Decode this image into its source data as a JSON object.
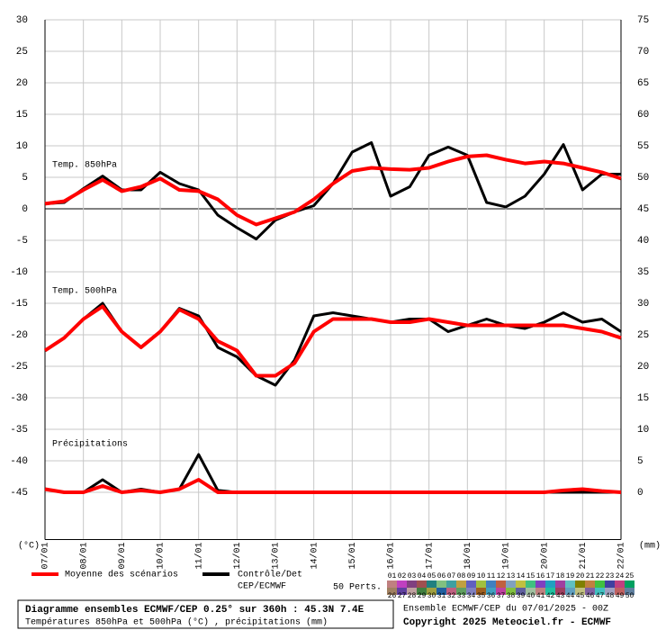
{
  "chart_data": {
    "type": "line",
    "x": [
      0,
      0.5,
      1,
      1.5,
      2,
      2.5,
      3,
      3.5,
      4,
      4.5,
      5,
      5.5,
      6,
      6.5,
      7,
      7.5,
      8,
      8.5,
      9,
      9.5,
      10,
      10.5,
      11,
      11.5,
      12,
      12.5,
      13,
      13.5,
      14,
      14.5,
      15
    ],
    "xlim": [
      0,
      15
    ],
    "xticks": [
      {
        "value": 0,
        "label": "07/01"
      },
      {
        "value": 1,
        "label": "08/01"
      },
      {
        "value": 2,
        "label": "09/01"
      },
      {
        "value": 3,
        "label": "10/01"
      },
      {
        "value": 4,
        "label": "11/01"
      },
      {
        "value": 5,
        "label": "12/01"
      },
      {
        "value": 6,
        "label": "13/01"
      },
      {
        "value": 7,
        "label": "14/01"
      },
      {
        "value": 8,
        "label": "15/01"
      },
      {
        "value": 9,
        "label": "16/01"
      },
      {
        "value": 10,
        "label": "17/01"
      },
      {
        "value": 11,
        "label": "18/01"
      },
      {
        "value": 12,
        "label": "19/01"
      },
      {
        "value": 13,
        "label": "20/01"
      },
      {
        "value": 14,
        "label": "21/01"
      },
      {
        "value": 15,
        "label": "22/01"
      }
    ],
    "ylim": [
      -52.5,
      30
    ],
    "yticks": [
      30,
      25,
      20,
      15,
      10,
      5,
      0,
      -5,
      -10,
      -15,
      -20,
      -25,
      -30,
      -35,
      -40,
      -45
    ],
    "y2lim": [
      -7.5,
      75
    ],
    "y2ticks": [
      75,
      70,
      65,
      60,
      55,
      50,
      45,
      40,
      35,
      30,
      25,
      20,
      15,
      10,
      5,
      0
    ],
    "y_unit": "(°C)",
    "y2_unit": "(mm)",
    "grid": true,
    "panels": [
      {
        "label": "Temp. 850hPa",
        "axis": "y",
        "mean": [
          0.8,
          1.2,
          3.0,
          4.6,
          2.8,
          3.5,
          4.8,
          3.0,
          2.8,
          1.5,
          -1.0,
          -2.5,
          -1.5,
          -0.5,
          1.5,
          4.0,
          6.0,
          6.5,
          6.3,
          6.2,
          6.5,
          7.5,
          8.3,
          8.5,
          7.8,
          7.2,
          7.5,
          7.2,
          6.5,
          5.8,
          4.8
        ],
        "control": [
          0.8,
          1.0,
          3.2,
          5.2,
          3.0,
          3.0,
          5.8,
          4.0,
          3.0,
          -1.0,
          -3.0,
          -4.8,
          -1.8,
          -0.5,
          0.5,
          4.0,
          9.0,
          10.5,
          2.0,
          3.5,
          8.5,
          9.8,
          8.5,
          1.0,
          0.3,
          2.0,
          5.5,
          10.2,
          3.0,
          5.5,
          5.5
        ]
      },
      {
        "label": "Temp. 500hPa",
        "axis": "y",
        "mean": [
          -22.5,
          -20.5,
          -17.5,
          -15.5,
          -19.5,
          -22,
          -19.5,
          -16,
          -17.5,
          -21,
          -22.5,
          -26.5,
          -26.5,
          -24.5,
          -19.5,
          -17.5,
          -17.5,
          -17.5,
          -18,
          -18,
          -17.5,
          -18,
          -18.5,
          -18.5,
          -18.5,
          -18.5,
          -18.5,
          -18.5,
          -19,
          -19.5,
          -20.5
        ],
        "control": [
          -22.5,
          -20.5,
          -17.5,
          -15,
          -19.5,
          -22,
          -19.5,
          -15.8,
          -17,
          -22,
          -23.5,
          -26.5,
          -28,
          -24,
          -17,
          -16.5,
          -17,
          -17.5,
          -18,
          -17.5,
          -17.5,
          -19.5,
          -18.5,
          -17.5,
          -18.5,
          -19,
          -18,
          -16.5,
          -18,
          -17.5,
          -19.5
        ]
      },
      {
        "label": "Précipitations",
        "axis": "y2",
        "mean": [
          0.5,
          0,
          0,
          1.0,
          0,
          0.3,
          0,
          0.5,
          2.0,
          0,
          0,
          0,
          0,
          0,
          0,
          0,
          0,
          0,
          0,
          0,
          0,
          0,
          0,
          0,
          0,
          0,
          0,
          0.3,
          0.5,
          0.2,
          0
        ],
        "control": [
          0.5,
          0,
          0,
          2.0,
          0,
          0.5,
          0,
          0.5,
          6.0,
          0.3,
          0,
          0,
          0,
          0,
          0,
          0,
          0,
          0,
          0,
          0,
          0,
          0,
          0,
          0,
          0,
          0,
          0,
          0,
          0,
          0,
          0
        ]
      }
    ],
    "mean_legend": {
      "label": "Moyenne des scénarios",
      "color": "#ff0000"
    },
    "control_legend": {
      "label": "Contrôle/Det",
      "label2": "CEP/ECMWF",
      "color": "#000000"
    },
    "members_label": "50 Perts.",
    "members": [
      {
        "name": "01",
        "color": "#c08080"
      },
      {
        "name": "02",
        "color": "#c040c0"
      },
      {
        "name": "03",
        "color": "#804080"
      },
      {
        "name": "04",
        "color": "#a05050"
      },
      {
        "name": "05",
        "color": "#208080"
      },
      {
        "name": "06",
        "color": "#80c080"
      },
      {
        "name": "07",
        "color": "#40a0a0"
      },
      {
        "name": "08",
        "color": "#c0a040"
      },
      {
        "name": "09",
        "color": "#6060c0"
      },
      {
        "name": "10",
        "color": "#a0c040"
      },
      {
        "name": "11",
        "color": "#4080c0"
      },
      {
        "name": "12",
        "color": "#c06040"
      },
      {
        "name": "13",
        "color": "#80a0c0"
      },
      {
        "name": "14",
        "color": "#c0c040"
      },
      {
        "name": "15",
        "color": "#40c080"
      },
      {
        "name": "16",
        "color": "#8040c0"
      },
      {
        "name": "17",
        "color": "#20a0c0"
      },
      {
        "name": "18",
        "color": "#a040a0"
      },
      {
        "name": "19",
        "color": "#60c0c0"
      },
      {
        "name": "20",
        "color": "#808000"
      },
      {
        "name": "21",
        "color": "#c08040"
      },
      {
        "name": "22",
        "color": "#40c040"
      },
      {
        "name": "23",
        "color": "#4040a0"
      },
      {
        "name": "24",
        "color": "#c04080"
      },
      {
        "name": "25",
        "color": "#00a060"
      },
      {
        "name": "26",
        "color": "#a08060"
      },
      {
        "name": "27",
        "color": "#6040a0"
      },
      {
        "name": "28",
        "color": "#c0a0a0"
      },
      {
        "name": "29",
        "color": "#408040"
      },
      {
        "name": "30",
        "color": "#a0a040"
      },
      {
        "name": "31",
        "color": "#2060a0"
      },
      {
        "name": "32",
        "color": "#c06080"
      },
      {
        "name": "33",
        "color": "#60a060"
      },
      {
        "name": "34",
        "color": "#8080c0"
      },
      {
        "name": "35",
        "color": "#a06020"
      },
      {
        "name": "36",
        "color": "#40a0c0"
      },
      {
        "name": "37",
        "color": "#c040a0"
      },
      {
        "name": "38",
        "color": "#80c040"
      },
      {
        "name": "39",
        "color": "#6060a0"
      },
      {
        "name": "40",
        "color": "#a0c0a0"
      },
      {
        "name": "41",
        "color": "#c08080"
      },
      {
        "name": "42",
        "color": "#20c0a0"
      },
      {
        "name": "43",
        "color": "#a04060"
      },
      {
        "name": "44",
        "color": "#60a0c0"
      },
      {
        "name": "45",
        "color": "#c0c080"
      },
      {
        "name": "46",
        "color": "#8060a0"
      },
      {
        "name": "47",
        "color": "#40c0c0"
      },
      {
        "name": "48",
        "color": "#a0a0c0"
      },
      {
        "name": "49",
        "color": "#c06060"
      },
      {
        "name": "50",
        "color": "#6080a0"
      }
    ],
    "footer": {
      "title": "Diagramme ensembles ECMWF/CEP 0.25° sur 360h : 45.3N 7.4E",
      "subtitle": "Températures 850hPa et 500hPa (°C) , précipitations (mm)",
      "run": "Ensemble ECMWF/CEP du 07/01/2025 - 00Z",
      "copyright": "Copyright 2025 Meteociel.fr - ECMWF"
    }
  }
}
